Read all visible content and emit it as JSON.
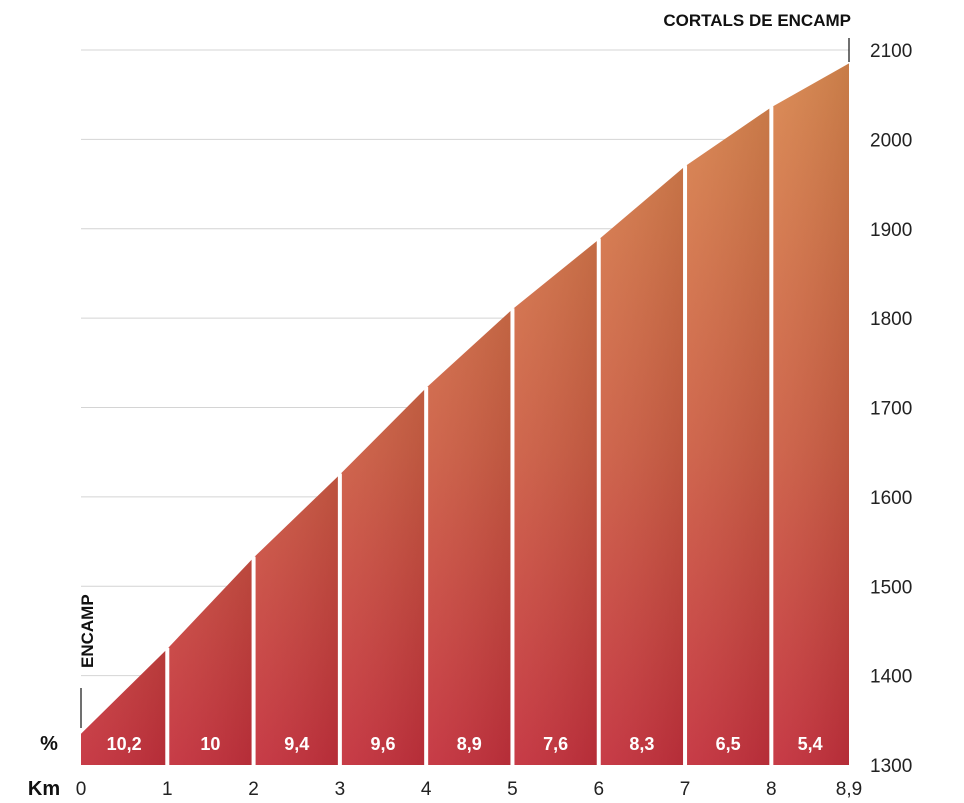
{
  "chart_data": {
    "type": "area",
    "start_label": "ENCAMP",
    "end_label": "CORTALS DE ENCAMP",
    "x_axis_name": "Km",
    "pct_axis_name": "%",
    "xlim": [
      0,
      8.9
    ],
    "ylim": [
      1300,
      2100
    ],
    "x_ticks": [
      {
        "value": 0,
        "label": "0"
      },
      {
        "value": 1,
        "label": "1"
      },
      {
        "value": 2,
        "label": "2"
      },
      {
        "value": 3,
        "label": "3"
      },
      {
        "value": 4,
        "label": "4"
      },
      {
        "value": 5,
        "label": "5"
      },
      {
        "value": 6,
        "label": "6"
      },
      {
        "value": 7,
        "label": "7"
      },
      {
        "value": 8,
        "label": "8"
      },
      {
        "value": 8.9,
        "label": "8,9"
      }
    ],
    "y_ticks": [
      {
        "value": 1300,
        "label": "1300"
      },
      {
        "value": 1400,
        "label": "1400"
      },
      {
        "value": 1500,
        "label": "1500"
      },
      {
        "value": 1600,
        "label": "1600"
      },
      {
        "value": 1700,
        "label": "1700"
      },
      {
        "value": 1800,
        "label": "1800"
      },
      {
        "value": 1900,
        "label": "1900"
      },
      {
        "value": 2000,
        "label": "2000"
      },
      {
        "value": 2100,
        "label": "2100"
      }
    ],
    "x": [
      0,
      1,
      2,
      3,
      4,
      5,
      6,
      7,
      8,
      8.9
    ],
    "elevation": [
      1335,
      1430,
      1532,
      1625,
      1722,
      1810,
      1888,
      1970,
      2036,
      2085
    ],
    "segments": [
      {
        "from": 0,
        "to": 1,
        "label": "10,2",
        "value": 10.2
      },
      {
        "from": 1,
        "to": 2,
        "label": "10",
        "value": 10
      },
      {
        "from": 2,
        "to": 3,
        "label": "9,4",
        "value": 9.4
      },
      {
        "from": 3,
        "to": 4,
        "label": "9,6",
        "value": 9.6
      },
      {
        "from": 4,
        "to": 5,
        "label": "8,9",
        "value": 8.9
      },
      {
        "from": 5,
        "to": 6,
        "label": "7,6",
        "value": 7.6
      },
      {
        "from": 6,
        "to": 7,
        "label": "8,3",
        "value": 8.3
      },
      {
        "from": 7,
        "to": 8,
        "label": "6,5",
        "value": 6.5
      },
      {
        "from": 8,
        "to": 8.9,
        "label": "5,4",
        "value": 5.4
      }
    ],
    "grid": true,
    "colors": {
      "fill_top": "#d9874e",
      "fill_mid": "#cd5e44",
      "fill_bottom": "#c4303c",
      "grid": "#d4d4d4",
      "separator": "#ffffff"
    }
  }
}
